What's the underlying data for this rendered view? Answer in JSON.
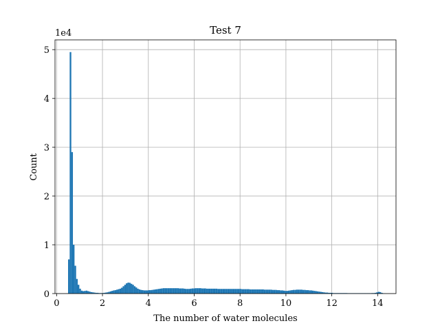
{
  "chart_data": {
    "type": "bar",
    "title": "Test 7",
    "xlabel": "The number of water molecules",
    "ylabel": "Count",
    "y_offset_label": "1e4",
    "xlim": [
      -0.07,
      14.8
    ],
    "ylim": [
      0,
      52000
    ],
    "xticks": [
      0,
      2,
      4,
      6,
      8,
      10,
      12,
      14
    ],
    "xtick_labels": [
      "0",
      "2",
      "4",
      "6",
      "8",
      "10",
      "12",
      "14"
    ],
    "yticks": [
      0,
      10000,
      20000,
      30000,
      40000,
      50000
    ],
    "ytick_labels": [
      "0",
      "1",
      "2",
      "3",
      "4",
      "5"
    ],
    "grid": true,
    "bar_color": "#1f77b4",
    "bin_width": 0.0707,
    "bins": [
      [
        0.5,
        7000
      ],
      [
        0.57,
        49500
      ],
      [
        0.64,
        29000
      ],
      [
        0.71,
        10000
      ],
      [
        0.78,
        5700
      ],
      [
        0.85,
        3000
      ],
      [
        0.92,
        1800
      ],
      [
        0.99,
        1000
      ],
      [
        1.06,
        600
      ],
      [
        1.13,
        500
      ],
      [
        1.2,
        550
      ],
      [
        1.27,
        600
      ],
      [
        1.34,
        500
      ],
      [
        1.41,
        400
      ],
      [
        1.48,
        300
      ],
      [
        1.55,
        250
      ],
      [
        1.62,
        200
      ],
      [
        1.69,
        150
      ],
      [
        1.76,
        150
      ],
      [
        1.83,
        100
      ],
      [
        1.9,
        100
      ],
      [
        1.97,
        100
      ],
      [
        2.04,
        150
      ],
      [
        2.11,
        200
      ],
      [
        2.18,
        250
      ],
      [
        2.25,
        350
      ],
      [
        2.32,
        450
      ],
      [
        2.39,
        550
      ],
      [
        2.46,
        650
      ],
      [
        2.53,
        700
      ],
      [
        2.6,
        800
      ],
      [
        2.67,
        900
      ],
      [
        2.74,
        1000
      ],
      [
        2.81,
        1200
      ],
      [
        2.88,
        1500
      ],
      [
        2.95,
        1800
      ],
      [
        3.02,
        2100
      ],
      [
        3.09,
        2250
      ],
      [
        3.16,
        2200
      ],
      [
        3.23,
        2000
      ],
      [
        3.3,
        1800
      ],
      [
        3.37,
        1500
      ],
      [
        3.44,
        1250
      ],
      [
        3.51,
        1000
      ],
      [
        3.58,
        850
      ],
      [
        3.65,
        750
      ],
      [
        3.72,
        700
      ],
      [
        3.79,
        650
      ],
      [
        3.86,
        650
      ],
      [
        3.93,
        650
      ],
      [
        4.0,
        700
      ],
      [
        4.07,
        700
      ],
      [
        4.14,
        750
      ],
      [
        4.21,
        800
      ],
      [
        4.28,
        850
      ],
      [
        4.35,
        900
      ],
      [
        4.42,
        950
      ],
      [
        4.49,
        1000
      ],
      [
        4.56,
        1050
      ],
      [
        4.63,
        1100
      ],
      [
        4.7,
        1100
      ],
      [
        4.77,
        1100
      ],
      [
        4.84,
        1100
      ],
      [
        4.91,
        1100
      ],
      [
        4.98,
        1100
      ],
      [
        5.05,
        1100
      ],
      [
        5.12,
        1100
      ],
      [
        5.19,
        1100
      ],
      [
        5.26,
        1100
      ],
      [
        5.33,
        1050
      ],
      [
        5.4,
        1050
      ],
      [
        5.47,
        1050
      ],
      [
        5.54,
        1000
      ],
      [
        5.61,
        950
      ],
      [
        5.68,
        950
      ],
      [
        5.75,
        950
      ],
      [
        5.82,
        1000
      ],
      [
        5.89,
        1050
      ],
      [
        5.96,
        1050
      ],
      [
        6.03,
        1100
      ],
      [
        6.1,
        1100
      ],
      [
        6.17,
        1100
      ],
      [
        6.24,
        1100
      ],
      [
        6.31,
        1050
      ],
      [
        6.38,
        1050
      ],
      [
        6.45,
        1050
      ],
      [
        6.52,
        1000
      ],
      [
        6.59,
        1000
      ],
      [
        6.66,
        1000
      ],
      [
        6.73,
        1000
      ],
      [
        6.8,
        1000
      ],
      [
        6.87,
        1000
      ],
      [
        6.94,
        1000
      ],
      [
        7.01,
        950
      ],
      [
        7.08,
        950
      ],
      [
        7.15,
        950
      ],
      [
        7.22,
        950
      ],
      [
        7.29,
        950
      ],
      [
        7.36,
        950
      ],
      [
        7.43,
        950
      ],
      [
        7.5,
        950
      ],
      [
        7.57,
        950
      ],
      [
        7.64,
        950
      ],
      [
        7.71,
        950
      ],
      [
        7.78,
        950
      ],
      [
        7.85,
        950
      ],
      [
        7.92,
        950
      ],
      [
        7.99,
        950
      ],
      [
        8.06,
        900
      ],
      [
        8.13,
        900
      ],
      [
        8.2,
        900
      ],
      [
        8.27,
        900
      ],
      [
        8.34,
        900
      ],
      [
        8.41,
        850
      ],
      [
        8.48,
        850
      ],
      [
        8.55,
        850
      ],
      [
        8.62,
        850
      ],
      [
        8.69,
        850
      ],
      [
        8.76,
        850
      ],
      [
        8.83,
        850
      ],
      [
        8.9,
        850
      ],
      [
        8.97,
        850
      ],
      [
        9.04,
        800
      ],
      [
        9.11,
        800
      ],
      [
        9.18,
        800
      ],
      [
        9.25,
        800
      ],
      [
        9.32,
        800
      ],
      [
        9.39,
        750
      ],
      [
        9.46,
        750
      ],
      [
        9.53,
        750
      ],
      [
        9.6,
        700
      ],
      [
        9.67,
        700
      ],
      [
        9.74,
        650
      ],
      [
        9.81,
        650
      ],
      [
        9.88,
        600
      ],
      [
        9.95,
        550
      ],
      [
        10.02,
        550
      ],
      [
        10.09,
        600
      ],
      [
        10.16,
        650
      ],
      [
        10.23,
        700
      ],
      [
        10.3,
        750
      ],
      [
        10.37,
        750
      ],
      [
        10.44,
        800
      ],
      [
        10.51,
        800
      ],
      [
        10.58,
        800
      ],
      [
        10.65,
        800
      ],
      [
        10.72,
        750
      ],
      [
        10.79,
        750
      ],
      [
        10.86,
        700
      ],
      [
        10.93,
        700
      ],
      [
        11.0,
        650
      ],
      [
        11.07,
        650
      ],
      [
        11.14,
        600
      ],
      [
        11.21,
        550
      ],
      [
        11.28,
        500
      ],
      [
        11.35,
        450
      ],
      [
        11.42,
        400
      ],
      [
        11.49,
        350
      ],
      [
        11.56,
        300
      ],
      [
        11.63,
        250
      ],
      [
        11.7,
        200
      ],
      [
        11.77,
        200
      ],
      [
        11.84,
        150
      ],
      [
        11.91,
        150
      ],
      [
        11.98,
        150
      ],
      [
        12.05,
        100
      ],
      [
        12.12,
        100
      ],
      [
        12.19,
        100
      ],
      [
        12.26,
        100
      ],
      [
        12.33,
        100
      ],
      [
        12.4,
        100
      ],
      [
        12.47,
        100
      ],
      [
        12.54,
        100
      ],
      [
        12.61,
        100
      ],
      [
        12.68,
        80
      ],
      [
        12.75,
        80
      ],
      [
        12.82,
        80
      ],
      [
        12.89,
        80
      ],
      [
        12.96,
        80
      ],
      [
        13.03,
        80
      ],
      [
        13.1,
        80
      ],
      [
        13.17,
        80
      ],
      [
        13.24,
        80
      ],
      [
        13.31,
        80
      ],
      [
        13.38,
        80
      ],
      [
        13.45,
        80
      ],
      [
        13.52,
        80
      ],
      [
        13.59,
        80
      ],
      [
        13.66,
        80
      ],
      [
        13.73,
        100
      ],
      [
        13.8,
        100
      ],
      [
        13.87,
        150
      ],
      [
        13.94,
        250
      ],
      [
        14.01,
        350
      ],
      [
        14.08,
        300
      ],
      [
        14.15,
        150
      ],
      [
        14.22,
        50
      ],
      [
        14.29,
        30
      ]
    ]
  }
}
